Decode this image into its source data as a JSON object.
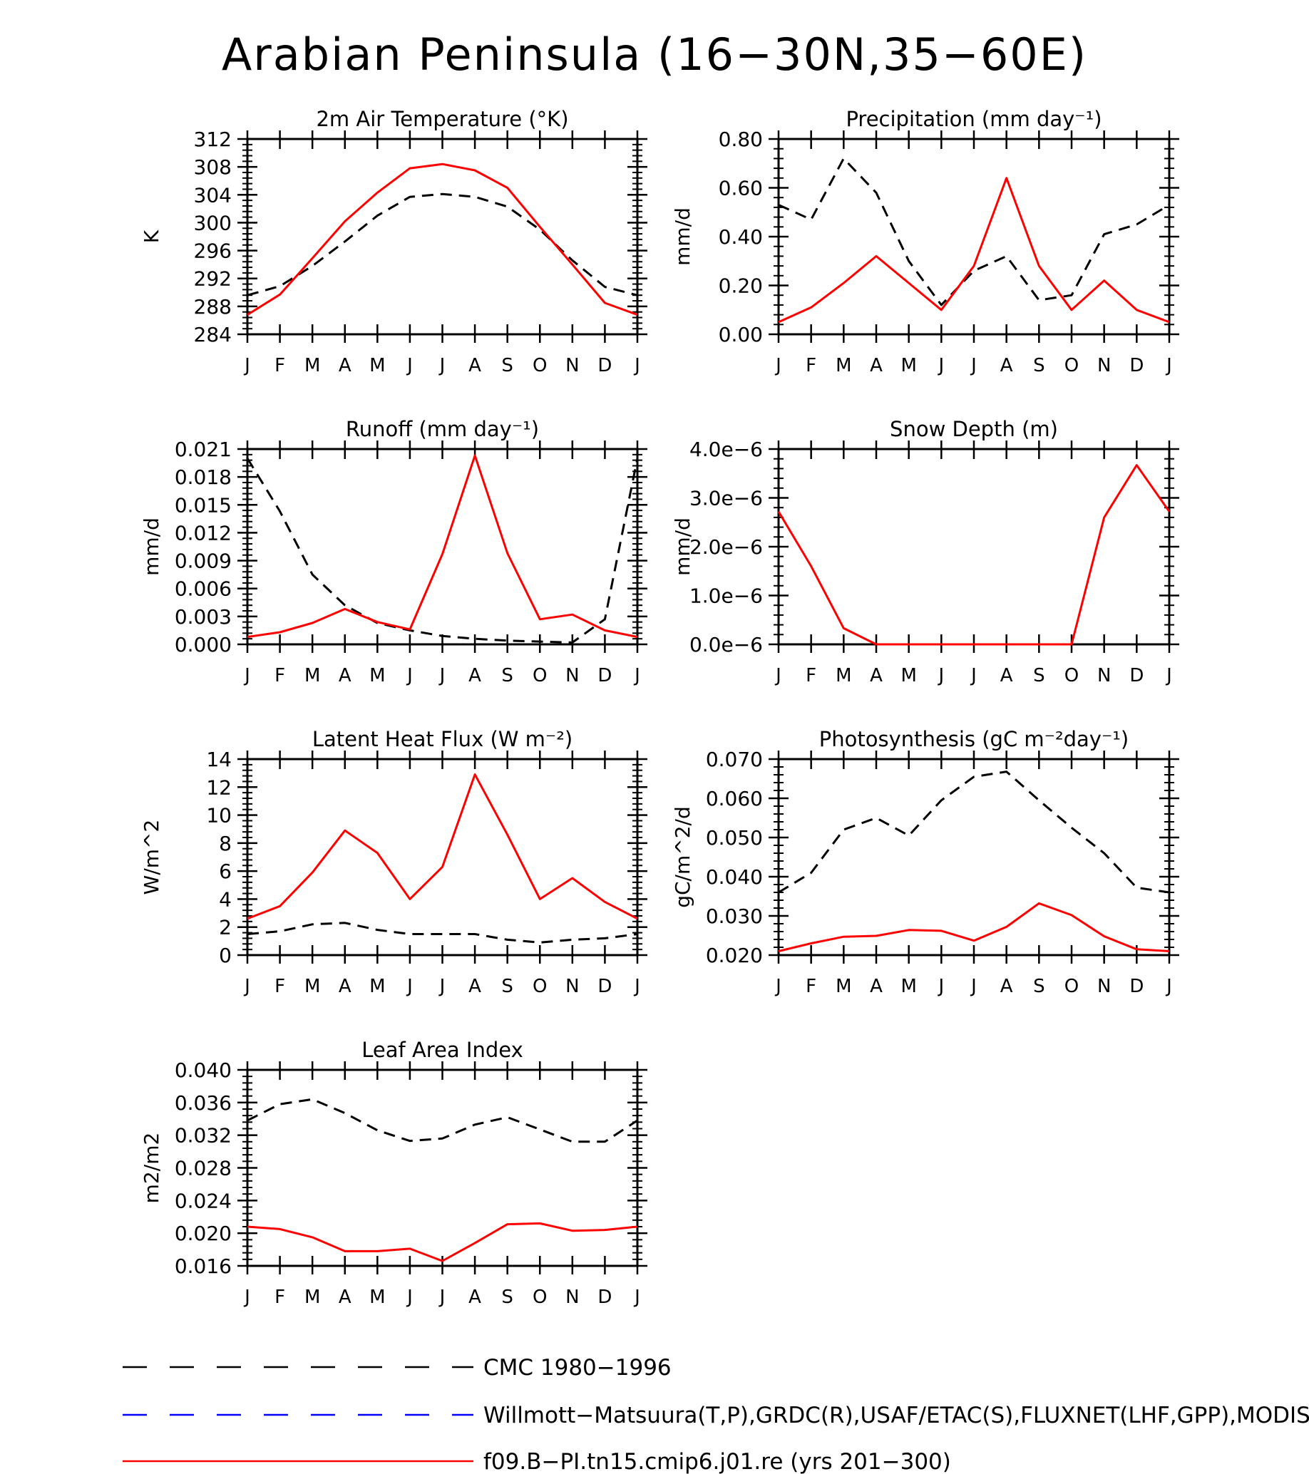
{
  "page_title": "Arabian Peninsula (16−30N,35−60E)",
  "month_labels": [
    "J",
    "F",
    "M",
    "A",
    "M",
    "J",
    "J",
    "A",
    "S",
    "O",
    "N",
    "D",
    "J"
  ],
  "series_styles": {
    "obs": {
      "color": "#000000",
      "dash": "dashed"
    },
    "model": {
      "color": "#ff0000",
      "dash": "solid"
    },
    "obs_alt": {
      "color": "#0000ff",
      "dash": "dashed"
    }
  },
  "chart_data": [
    {
      "id": "temp",
      "type": "line",
      "title": "2m Air Temperature (°K)",
      "ylabel": "K",
      "ylim": [
        284,
        312
      ],
      "yticks": [
        "312",
        "308",
        "304",
        "300",
        "296",
        "292",
        "288",
        "284"
      ],
      "x": [
        "J",
        "F",
        "M",
        "A",
        "M",
        "J",
        "J",
        "A",
        "S",
        "O",
        "N",
        "D",
        "J"
      ],
      "series": [
        {
          "name": "CMC 1980−1996",
          "style": "obs",
          "values": [
            289.6,
            290.9,
            293.8,
            297.3,
            301.0,
            303.7,
            304.1,
            303.7,
            302.3,
            299.0,
            294.6,
            290.8,
            289.6
          ]
        },
        {
          "name": "f09.B−PI.tn15.cmip6.j01.re (yrs 201−300)",
          "style": "model",
          "values": [
            286.8,
            289.7,
            294.9,
            300.2,
            304.3,
            307.8,
            308.4,
            307.5,
            305.0,
            299.4,
            294.0,
            288.5,
            286.8
          ]
        }
      ]
    },
    {
      "id": "precip",
      "type": "line",
      "title": "Precipitation (mm day⁻¹)",
      "ylabel": "mm/d",
      "ylim": [
        0.0,
        0.8
      ],
      "yticks": [
        "0.80",
        "0.60",
        "0.40",
        "0.20",
        "0.00"
      ],
      "x": [
        "J",
        "F",
        "M",
        "A",
        "M",
        "J",
        "J",
        "A",
        "S",
        "O",
        "N",
        "D",
        "J"
      ],
      "series": [
        {
          "name": "CMC 1980−1996",
          "style": "obs",
          "values": [
            0.53,
            0.47,
            0.72,
            0.58,
            0.3,
            0.12,
            0.26,
            0.32,
            0.14,
            0.16,
            0.41,
            0.45,
            0.53
          ]
        },
        {
          "name": "f09.B−PI.tn15.cmip6.j01.re (yrs 201−300)",
          "style": "model",
          "values": [
            0.05,
            0.11,
            0.21,
            0.32,
            0.21,
            0.1,
            0.28,
            0.64,
            0.28,
            0.1,
            0.22,
            0.1,
            0.05
          ]
        }
      ]
    },
    {
      "id": "runoff",
      "type": "line",
      "title": "Runoff (mm day⁻¹)",
      "ylabel": "mm/d",
      "ylim": [
        0.0,
        0.021
      ],
      "yticks": [
        "0.021",
        "0.018",
        "0.015",
        "0.012",
        "0.009",
        "0.006",
        "0.003",
        "0.000"
      ],
      "x": [
        "J",
        "F",
        "M",
        "A",
        "M",
        "J",
        "J",
        "A",
        "S",
        "O",
        "N",
        "D",
        "J"
      ],
      "series": [
        {
          "name": "CMC 1980−1996",
          "style": "obs",
          "values": [
            0.02,
            0.0143,
            0.0075,
            0.0042,
            0.0023,
            0.0015,
            0.0009,
            0.0006,
            0.0004,
            0.0003,
            0.0002,
            0.0027,
            0.02
          ]
        },
        {
          "name": "f09.B−PI.tn15.cmip6.j01.re (yrs 201−300)",
          "style": "model",
          "values": [
            0.0008,
            0.0013,
            0.0023,
            0.0038,
            0.0024,
            0.0016,
            0.0097,
            0.0203,
            0.0098,
            0.0027,
            0.0032,
            0.0015,
            0.0008
          ]
        }
      ]
    },
    {
      "id": "snow",
      "type": "line",
      "title": "Snow Depth (m)",
      "ylabel": "mm/d",
      "ylim": [
        0.0,
        4e-06
      ],
      "yticks": [
        "4.0e−6",
        "3.0e−6",
        "2.0e−6",
        "1.0e−6",
        "0.0e−6"
      ],
      "x": [
        "J",
        "F",
        "M",
        "A",
        "M",
        "J",
        "J",
        "A",
        "S",
        "O",
        "N",
        "D",
        "J"
      ],
      "series": [
        {
          "name": "CMC 1980−1996",
          "style": "obs",
          "values": [
            0,
            0,
            0,
            0,
            0,
            0,
            0,
            0,
            0,
            0,
            0,
            0,
            0
          ]
        },
        {
          "name": "f09.B−PI.tn15.cmip6.j01.re (yrs 201−300)",
          "style": "model",
          "values": [
            2.72e-06,
            1.6e-06,
            3.3e-07,
            0,
            0,
            0,
            0,
            0,
            0,
            0,
            2.6e-06,
            3.67e-06,
            2.72e-06
          ]
        }
      ]
    },
    {
      "id": "lhf",
      "type": "line",
      "title": "Latent Heat Flux (W m⁻²)",
      "ylabel": "W/m^2",
      "ylim": [
        0,
        14
      ],
      "yticks": [
        "14",
        "12",
        "10",
        "8",
        "6",
        "4",
        "2",
        "0"
      ],
      "x": [
        "J",
        "F",
        "M",
        "A",
        "M",
        "J",
        "J",
        "A",
        "S",
        "O",
        "N",
        "D",
        "J"
      ],
      "series": [
        {
          "name": "CMC 1980−1996",
          "style": "obs",
          "values": [
            1.5,
            1.7,
            2.2,
            2.3,
            1.8,
            1.5,
            1.5,
            1.5,
            1.1,
            0.9,
            1.1,
            1.2,
            1.5
          ]
        },
        {
          "name": "f09.B−PI.tn15.cmip6.j01.re (yrs 201−300)",
          "style": "model",
          "values": [
            2.6,
            3.5,
            5.9,
            8.9,
            7.3,
            4.0,
            6.3,
            12.9,
            8.6,
            4.0,
            5.5,
            3.8,
            2.6
          ]
        }
      ]
    },
    {
      "id": "gpp",
      "type": "line",
      "title": "Photosynthesis (gC m⁻²day⁻¹)",
      "ylabel": "gC/m^2/d",
      "ylim": [
        0.02,
        0.07
      ],
      "yticks": [
        "0.070",
        "0.060",
        "0.050",
        "0.040",
        "0.030",
        "0.020"
      ],
      "x": [
        "J",
        "F",
        "M",
        "A",
        "M",
        "J",
        "J",
        "A",
        "S",
        "O",
        "N",
        "D",
        "J"
      ],
      "series": [
        {
          "name": "CMC 1980−1996",
          "style": "obs",
          "values": [
            0.036,
            0.041,
            0.052,
            0.055,
            0.0505,
            0.0595,
            0.0655,
            0.0668,
            0.0595,
            0.0525,
            0.046,
            0.0372,
            0.036
          ]
        },
        {
          "name": "f09.B−PI.tn15.cmip6.j01.re (yrs 201−300)",
          "style": "model",
          "values": [
            0.021,
            0.023,
            0.0247,
            0.0249,
            0.0264,
            0.0262,
            0.0237,
            0.0272,
            0.0332,
            0.0302,
            0.0248,
            0.0215,
            0.021
          ]
        }
      ]
    },
    {
      "id": "lai",
      "type": "line",
      "title": "Leaf Area Index",
      "ylabel": "m2/m2",
      "ylim": [
        0.016,
        0.04
      ],
      "yticks": [
        "0.040",
        "0.036",
        "0.032",
        "0.028",
        "0.024",
        "0.020",
        "0.016"
      ],
      "x": [
        "J",
        "F",
        "M",
        "A",
        "M",
        "J",
        "J",
        "A",
        "S",
        "O",
        "N",
        "D",
        "J"
      ],
      "series": [
        {
          "name": "CMC 1980−1996",
          "style": "obs",
          "values": [
            0.0338,
            0.0358,
            0.0364,
            0.0347,
            0.0326,
            0.0313,
            0.0316,
            0.0333,
            0.0342,
            0.0327,
            0.0312,
            0.0312,
            0.0338
          ]
        },
        {
          "name": "f09.B−PI.tn15.cmip6.j01.re (yrs 201−300)",
          "style": "model",
          "values": [
            0.0208,
            0.0205,
            0.0195,
            0.0178,
            0.0178,
            0.0181,
            0.0166,
            0.0188,
            0.0211,
            0.0212,
            0.0203,
            0.0204,
            0.0208
          ]
        }
      ]
    }
  ],
  "legend": [
    {
      "label": "CMC 1980−1996",
      "style": "obs"
    },
    {
      "label": "Willmott−Matsuura(T,P),GRDC(R),USAF/ETAC(S),FLUXNET(LHF,GPP),MODIS(LAI)",
      "style": "obs_alt"
    },
    {
      "label": "f09.B−PI.tn15.cmip6.j01.re (yrs 201−300)",
      "style": "model"
    }
  ]
}
